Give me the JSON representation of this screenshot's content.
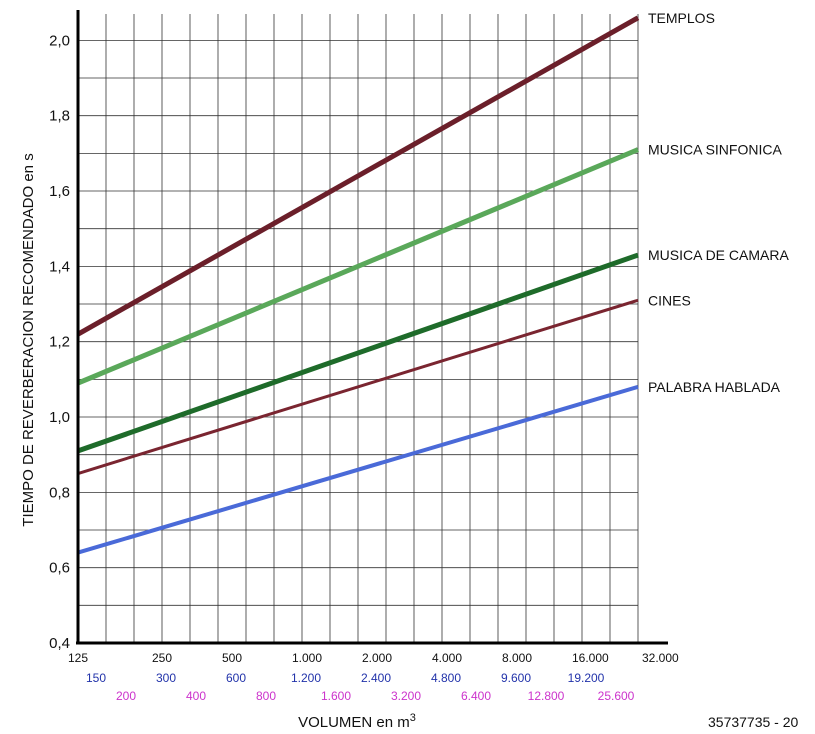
{
  "chart_data": {
    "type": "line",
    "title": "",
    "ylabel": "TIEMPO DE REVERBERACION RECOMENDADO en  s",
    "xlabel_prefix": "VOLUMEN en m",
    "xlabel_superscript": "3",
    "x_scale": "log",
    "ylim": [
      0.4,
      2.07
    ],
    "y_ticks": [
      "0,4",
      "0,6",
      "0,8",
      "1,0",
      "1,2",
      "1,4",
      "1,6",
      "1,8",
      "2,0"
    ],
    "x_tick_rows": [
      {
        "color": "#111111",
        "labels": [
          "125",
          "250",
          "500",
          "1.000",
          "2.000",
          "4.000",
          "8.000",
          "16.000",
          "32.000"
        ]
      },
      {
        "color": "#2233aa",
        "labels": [
          "150",
          "300",
          "600",
          "1.200",
          "2.400",
          "4.800",
          "9.600",
          "19.200"
        ]
      },
      {
        "color": "#cc33cc",
        "labels": [
          "200",
          "400",
          "800",
          "1.600",
          "3.200",
          "6.400",
          "12.800",
          "25.600"
        ]
      }
    ],
    "grid": true,
    "series": [
      {
        "name": "TEMPLOS",
        "color": "#6b1f2a",
        "width": 5,
        "x": [
          125,
          32000
        ],
        "y": [
          1.22,
          2.06
        ]
      },
      {
        "name": "MUSICA SINFONICA",
        "color": "#5aa85a",
        "width": 5,
        "x": [
          125,
          32000
        ],
        "y": [
          1.09,
          1.71
        ]
      },
      {
        "name": "MUSICA DE CAMARA",
        "color": "#1e6b2a",
        "width": 5,
        "x": [
          125,
          32000
        ],
        "y": [
          0.91,
          1.43
        ]
      },
      {
        "name": "CINES",
        "color": "#7a2530",
        "width": 3,
        "x": [
          125,
          32000
        ],
        "y": [
          0.85,
          1.31
        ]
      },
      {
        "name": "PALABRA HABLADA",
        "color": "#4a6ad8",
        "width": 4,
        "x": [
          125,
          32000
        ],
        "y": [
          0.64,
          1.08
        ]
      }
    ]
  },
  "credit": "35737735 - 20"
}
